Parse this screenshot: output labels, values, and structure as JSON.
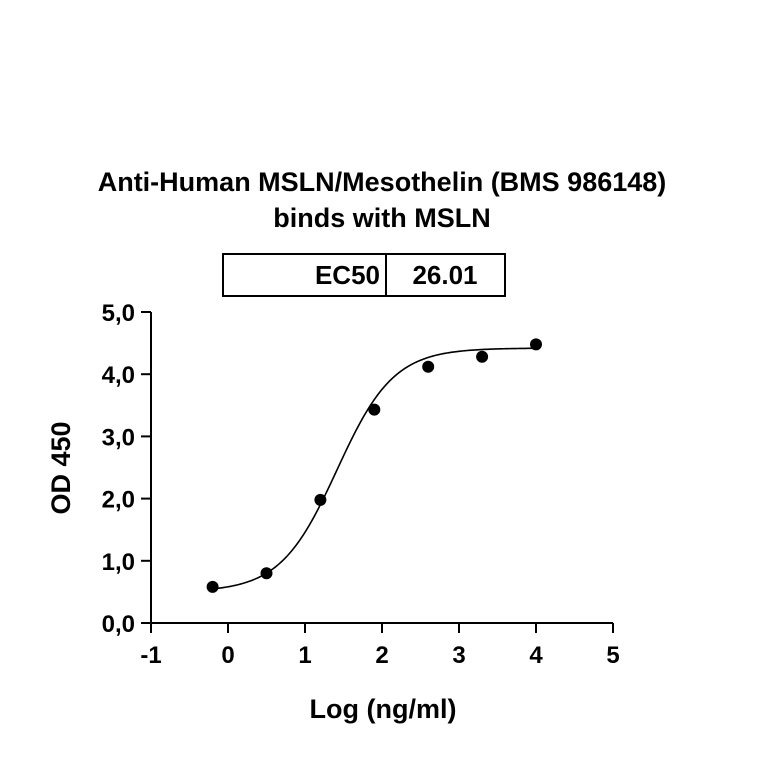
{
  "chart_data": {
    "type": "scatter",
    "title_lines": [
      "Anti-Human MSLN/Mesothelin (BMS 986148)",
      "binds with MSLN"
    ],
    "xlabel": "Log (ng/ml)",
    "ylabel": "OD 450",
    "xlim": [
      -1,
      5
    ],
    "ylim": [
      0,
      5
    ],
    "x_ticks": [
      -1,
      0,
      1,
      2,
      3,
      4,
      5
    ],
    "x_tick_labels": [
      "-1",
      "0",
      "1",
      "2",
      "3",
      "4",
      "5"
    ],
    "y_ticks": [
      0,
      1,
      2,
      3,
      4,
      5
    ],
    "y_tick_labels": [
      "0,0",
      "1,0",
      "2,0",
      "3,0",
      "4,0",
      "5,0"
    ],
    "grid": false,
    "points": {
      "x": [
        -0.2,
        0.5,
        1.2,
        1.9,
        2.6,
        3.3,
        4.0
      ],
      "y": [
        0.58,
        0.8,
        1.98,
        3.43,
        4.12,
        4.28,
        4.48
      ]
    },
    "fit_curve": {
      "model": "4PL",
      "bottom": 0.5,
      "top": 4.42,
      "log_ec50": 1.415,
      "hill_slope": 1.18,
      "x_range": [
        -0.2,
        4.0
      ]
    },
    "ec50_box": {
      "label": "EC50",
      "value": "26.01"
    }
  }
}
